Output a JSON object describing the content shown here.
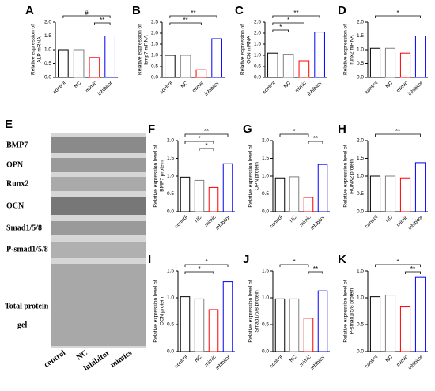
{
  "chart_data": [
    {
      "type": "bar",
      "panel": "A",
      "ylabel": [
        "Relative expression of",
        "ALP mRNA"
      ],
      "categories": [
        "control",
        "NC",
        "mimic",
        "inhibitor"
      ],
      "values": [
        1.0,
        1.0,
        0.72,
        1.5
      ],
      "colors": [
        "#000000",
        "#808080",
        "#ff0000",
        "#0000ff"
      ],
      "ylim": [
        0,
        2.0
      ],
      "yticks": [
        {
          "value": 0,
          "label": "0.0"
        },
        0.5,
        {
          "value": 1,
          "label": "1.0"
        },
        1.5,
        {
          "value": 2,
          "label": "2.0"
        }
      ],
      "annotations": [
        "#",
        "**"
      ]
    },
    {
      "type": "bar",
      "panel": "B",
      "ylabel": [
        "Relative expression of",
        "bmp7 mRNA"
      ],
      "categories": [
        "control",
        "NC",
        "mimic",
        "inhibitor"
      ],
      "values": [
        1.0,
        1.0,
        0.35,
        1.75
      ],
      "colors": [
        "#000000",
        "#808080",
        "#ff0000",
        "#0000ff"
      ],
      "ylim": [
        0,
        2.5
      ],
      "yticks": [
        {
          "value": 0,
          "label": "0.0"
        },
        0.5,
        {
          "value": 1,
          "label": "1.0"
        },
        1.5,
        {
          "value": 2,
          "label": "2.0"
        },
        2.5
      ],
      "annotations": [
        "**",
        "**"
      ]
    },
    {
      "type": "bar",
      "panel": "C",
      "ylabel": [
        "Relative expression of",
        "OCN mRNA"
      ],
      "categories": [
        "control",
        "NC",
        "mimic",
        "inhibitor"
      ],
      "values": [
        1.1,
        1.05,
        0.75,
        2.05
      ],
      "colors": [
        "#000000",
        "#808080",
        "#ff0000",
        "#0000ff"
      ],
      "ylim": [
        0,
        2.5
      ],
      "yticks": [
        {
          "value": 0,
          "label": "0.0"
        },
        0.5,
        {
          "value": 1,
          "label": "1.0"
        },
        1.5,
        {
          "value": 2,
          "label": "2.0"
        },
        2.5
      ],
      "annotations": [
        "**",
        "*",
        "*"
      ]
    },
    {
      "type": "bar",
      "panel": "D",
      "ylabel": [
        "Relative expression of",
        "runx2 mRNA"
      ],
      "categories": [
        "control",
        "NC",
        "mimic",
        "inhibitor"
      ],
      "values": [
        1.05,
        1.05,
        0.88,
        1.5
      ],
      "colors": [
        "#000000",
        "#808080",
        "#ff0000",
        "#0000ff"
      ],
      "ylim": [
        0,
        2.0
      ],
      "yticks": [
        {
          "value": 0,
          "label": "0.0"
        },
        0.5,
        {
          "value": 1,
          "label": "1.0"
        },
        1.5,
        {
          "value": 2,
          "label": "2.0"
        }
      ],
      "annotations": [
        "*"
      ]
    },
    {
      "type": "bar",
      "panel": "F",
      "ylabel": [
        "Relative expression level of",
        "BMP7 protein"
      ],
      "categories": [
        "control",
        "NC",
        "mimic",
        "inhibitor"
      ],
      "values": [
        0.97,
        0.88,
        0.68,
        1.35
      ],
      "colors": [
        "#000000",
        "#808080",
        "#ff0000",
        "#0000ff"
      ],
      "ylim": [
        0,
        2.0
      ],
      "yticks": [
        {
          "value": 0,
          "label": "0.0"
        },
        0.5,
        {
          "value": 1,
          "label": "1.0"
        },
        1.5,
        {
          "value": 2,
          "label": "2.0"
        }
      ],
      "annotations": [
        "**",
        "*",
        "*"
      ]
    },
    {
      "type": "bar",
      "panel": "G",
      "ylabel": [
        "Relative expression level of",
        "OPN protein"
      ],
      "categories": [
        "control",
        "NC",
        "mimic",
        "inhibitor"
      ],
      "values": [
        0.95,
        0.98,
        0.4,
        1.33
      ],
      "colors": [
        "#000000",
        "#808080",
        "#ff0000",
        "#0000ff"
      ],
      "ylim": [
        0,
        2.0
      ],
      "yticks": [
        {
          "value": 0,
          "label": "0.0"
        },
        0.5,
        {
          "value": 1,
          "label": "1.0"
        },
        1.5,
        {
          "value": 2,
          "label": "2.0"
        }
      ],
      "annotations": [
        "*",
        "**"
      ]
    },
    {
      "type": "bar",
      "panel": "H",
      "ylabel": [
        "Relative expression level of",
        "RUNX2 protein"
      ],
      "categories": [
        "control",
        "NC",
        "mimic",
        "inhibitor"
      ],
      "values": [
        1.0,
        1.0,
        0.95,
        1.38
      ],
      "colors": [
        "#000000",
        "#808080",
        "#ff0000",
        "#0000ff"
      ],
      "ylim": [
        0,
        2.0
      ],
      "yticks": [
        {
          "value": 0,
          "label": "0.0"
        },
        0.5,
        {
          "value": 1,
          "label": "1.0"
        },
        1.5,
        {
          "value": 2,
          "label": "2.0"
        }
      ],
      "annotations": [
        "**"
      ]
    },
    {
      "type": "bar",
      "panel": "I",
      "ylabel": [
        "Relative expression level of",
        "OCN protein"
      ],
      "categories": [
        "control",
        "NC",
        "mimic",
        "inhibitor"
      ],
      "values": [
        1.02,
        0.98,
        0.78,
        1.3
      ],
      "colors": [
        "#000000",
        "#808080",
        "#ff0000",
        "#0000ff"
      ],
      "ylim": [
        0,
        1.5
      ],
      "yticks": [
        {
          "value": 0,
          "label": "0.0"
        },
        0.5,
        {
          "value": 1,
          "label": "1.0"
        },
        1.5
      ],
      "annotations": [
        "*",
        "*"
      ]
    },
    {
      "type": "bar",
      "panel": "J",
      "ylabel": [
        "Relative expression level of",
        "Smad1/5/8 protein"
      ],
      "categories": [
        "control",
        "NC",
        "mimic",
        "inhibitor"
      ],
      "values": [
        0.98,
        0.98,
        0.62,
        1.13
      ],
      "colors": [
        "#000000",
        "#808080",
        "#ff0000",
        "#0000ff"
      ],
      "ylim": [
        0,
        1.5
      ],
      "yticks": [
        {
          "value": 0,
          "label": "0.0"
        },
        0.5,
        {
          "value": 1,
          "label": "1.0"
        },
        1.5
      ],
      "annotations": [
        "*",
        "**"
      ]
    },
    {
      "type": "bar",
      "panel": "K",
      "ylabel": [
        "Relative expression level of",
        "P-smad1/5/8 protein"
      ],
      "categories": [
        "control",
        "NC",
        "mimic",
        "inhibitor"
      ],
      "values": [
        1.02,
        1.05,
        0.83,
        1.38
      ],
      "colors": [
        "#000000",
        "#808080",
        "#ff0000",
        "#0000ff"
      ],
      "ylim": [
        0,
        1.5
      ],
      "yticks": [
        {
          "value": 0,
          "label": "0.0"
        },
        0.5,
        {
          "value": 1,
          "label": "1.0"
        },
        1.5
      ],
      "annotations": [
        "*",
        "**"
      ]
    }
  ],
  "blot": {
    "panel": "E",
    "rows": [
      "BMP7",
      "OPN",
      "Runx2",
      "OCN",
      "Smad1/5/8",
      "P-smad1/5/8"
    ],
    "gel_label": [
      "Total protein",
      "gel"
    ],
    "lanes": [
      "control",
      "NC",
      "inhibitor",
      "mimics"
    ]
  }
}
